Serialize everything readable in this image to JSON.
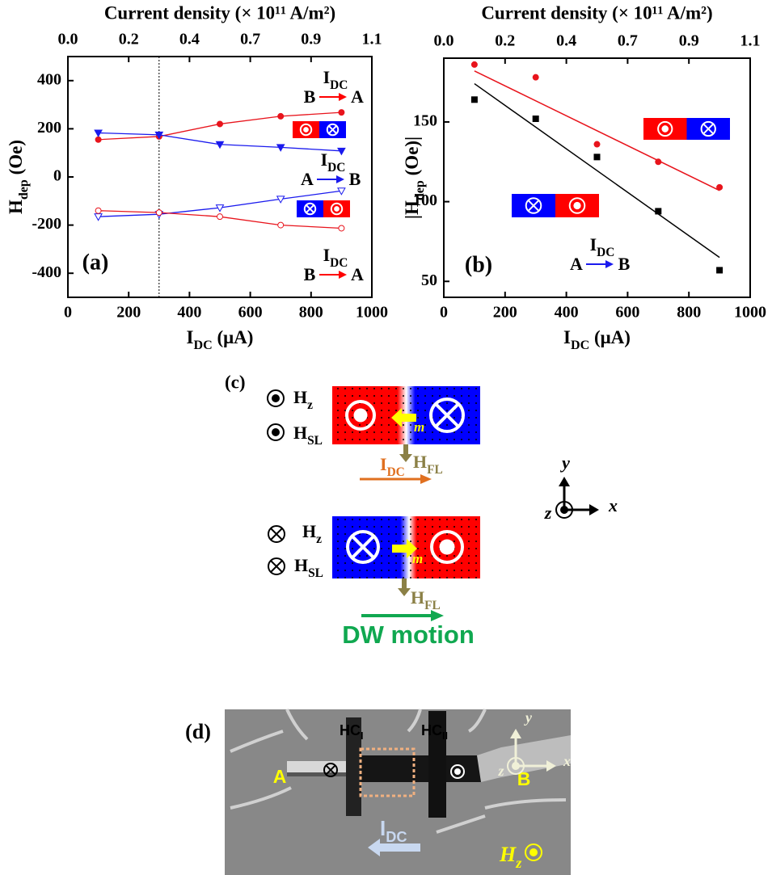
{
  "chart_data": [
    {
      "type": "line",
      "panel_label": "(a)",
      "title": "Current density (× 10¹¹ A/m²)",
      "x_label": [
        "I",
        {
          "sub": "DC"
        },
        " (μA)"
      ],
      "y_label": [
        "H",
        {
          "sub": "dep"
        },
        " (Oe)"
      ],
      "xlim": [
        0,
        1000
      ],
      "xticks": [
        0,
        200,
        400,
        600,
        800,
        1000
      ],
      "x2lim": [
        0,
        1.1
      ],
      "x2ticks": [
        {
          "value": 0,
          "label": "0.0"
        },
        {
          "value": 0.22,
          "label": "0.2"
        },
        {
          "value": 0.44,
          "label": "0.4"
        },
        {
          "value": 0.66,
          "label": "0.7"
        },
        {
          "value": 0.88,
          "label": "0.9"
        },
        1.1
      ],
      "ylim": [
        -500,
        500
      ],
      "yticks": [
        -400,
        -200,
        0,
        200,
        400
      ],
      "vline_x": 300,
      "x": [
        100,
        300,
        500,
        700,
        900
      ],
      "series": [
        {
          "color": "#e8141c",
          "marker": "circle",
          "filled": true,
          "values": [
            155,
            168,
            220,
            252,
            268
          ]
        },
        {
          "color": "#1a1aee",
          "marker": "tri-down",
          "filled": true,
          "values": [
            183,
            175,
            135,
            123,
            108
          ]
        },
        {
          "color": "#1a1aee",
          "marker": "tri-down",
          "filled": false,
          "values": [
            -165,
            -155,
            -128,
            -92,
            -58
          ]
        },
        {
          "color": "#e8141c",
          "marker": "circle",
          "filled": false,
          "values": [
            -140,
            -148,
            -165,
            -200,
            -213
          ]
        }
      ],
      "annotations": [
        {
          "current": [
            "I",
            {
              "sub": "DC"
            }
          ],
          "from": "B",
          "to": "A",
          "color": "#ff0000"
        },
        {
          "current": [
            "I",
            {
              "sub": "DC"
            }
          ],
          "from": "A",
          "to": "B",
          "color": "#1a1aee"
        },
        {
          "current": [
            "I",
            {
              "sub": "DC"
            }
          ],
          "from": "B",
          "to": "A",
          "color": "#ff0000"
        }
      ]
    },
    {
      "type": "scatter",
      "panel_label": "(b)",
      "title": "Current density (× 10¹¹ A/m²)",
      "x_label": [
        "I",
        {
          "sub": "DC"
        },
        " (μA)"
      ],
      "y_label": [
        "|H",
        {
          "sub": "dep"
        },
        " (Oe)|"
      ],
      "xlim": [
        0,
        1000
      ],
      "xticks": [
        0,
        200,
        400,
        600,
        800,
        1000
      ],
      "x2lim": [
        0,
        1.1
      ],
      "x2ticks": [
        {
          "value": 0,
          "label": "0.0"
        },
        {
          "value": 0.22,
          "label": "0.2"
        },
        {
          "value": 0.44,
          "label": "0.4"
        },
        {
          "value": 0.66,
          "label": "0.7"
        },
        {
          "value": 0.88,
          "label": "0.9"
        },
        1.1
      ],
      "ylim": [
        40,
        190
      ],
      "yticks": [
        50,
        100,
        150
      ],
      "x": [
        100,
        300,
        500,
        700,
        900
      ],
      "series": [
        {
          "color": "#e8141c",
          "marker": "circle",
          "filled": true,
          "values": [
            186,
            178,
            136,
            125,
            109
          ]
        },
        {
          "color": "#000000",
          "marker": "square",
          "filled": true,
          "values": [
            164,
            152,
            128,
            94,
            57
          ]
        }
      ],
      "fit_lines": [
        {
          "color": "#e8141c",
          "x": [
            100,
            900
          ],
          "values": [
            182,
            107
          ]
        },
        {
          "color": "#000000",
          "x": [
            100,
            900
          ],
          "values": [
            174,
            65
          ]
        }
      ],
      "annotations": [
        {
          "current": [
            "I",
            {
              "sub": "DC"
            }
          ],
          "from": "A",
          "to": "B",
          "color": "#1a1aee"
        }
      ]
    }
  ],
  "diagram_c": {
    "label": "(c)",
    "h_z": [
      "H",
      {
        "sub": "z"
      }
    ],
    "h_sl": [
      "H",
      {
        "sub": "SL"
      }
    ],
    "m": "m",
    "i_dc": [
      "I",
      {
        "sub": "DC"
      }
    ],
    "h_fl": [
      "H",
      {
        "sub": "FL"
      }
    ],
    "dw_motion": "DW motion",
    "axes": {
      "x": "x",
      "y": "y",
      "z": "z"
    }
  },
  "image_d": {
    "label": "(d)",
    "hc_1": [
      "HC",
      {
        "sub": "I"
      }
    ],
    "hc_2": [
      "HC",
      {
        "sub": "II"
      }
    ],
    "a": "A",
    "b": "B",
    "i_dc": [
      "I",
      {
        "sub": "DC"
      }
    ],
    "h_z": [
      "H",
      {
        "sub": "z"
      }
    ],
    "axes": {
      "x": "x",
      "y": "y",
      "z": "z"
    }
  }
}
